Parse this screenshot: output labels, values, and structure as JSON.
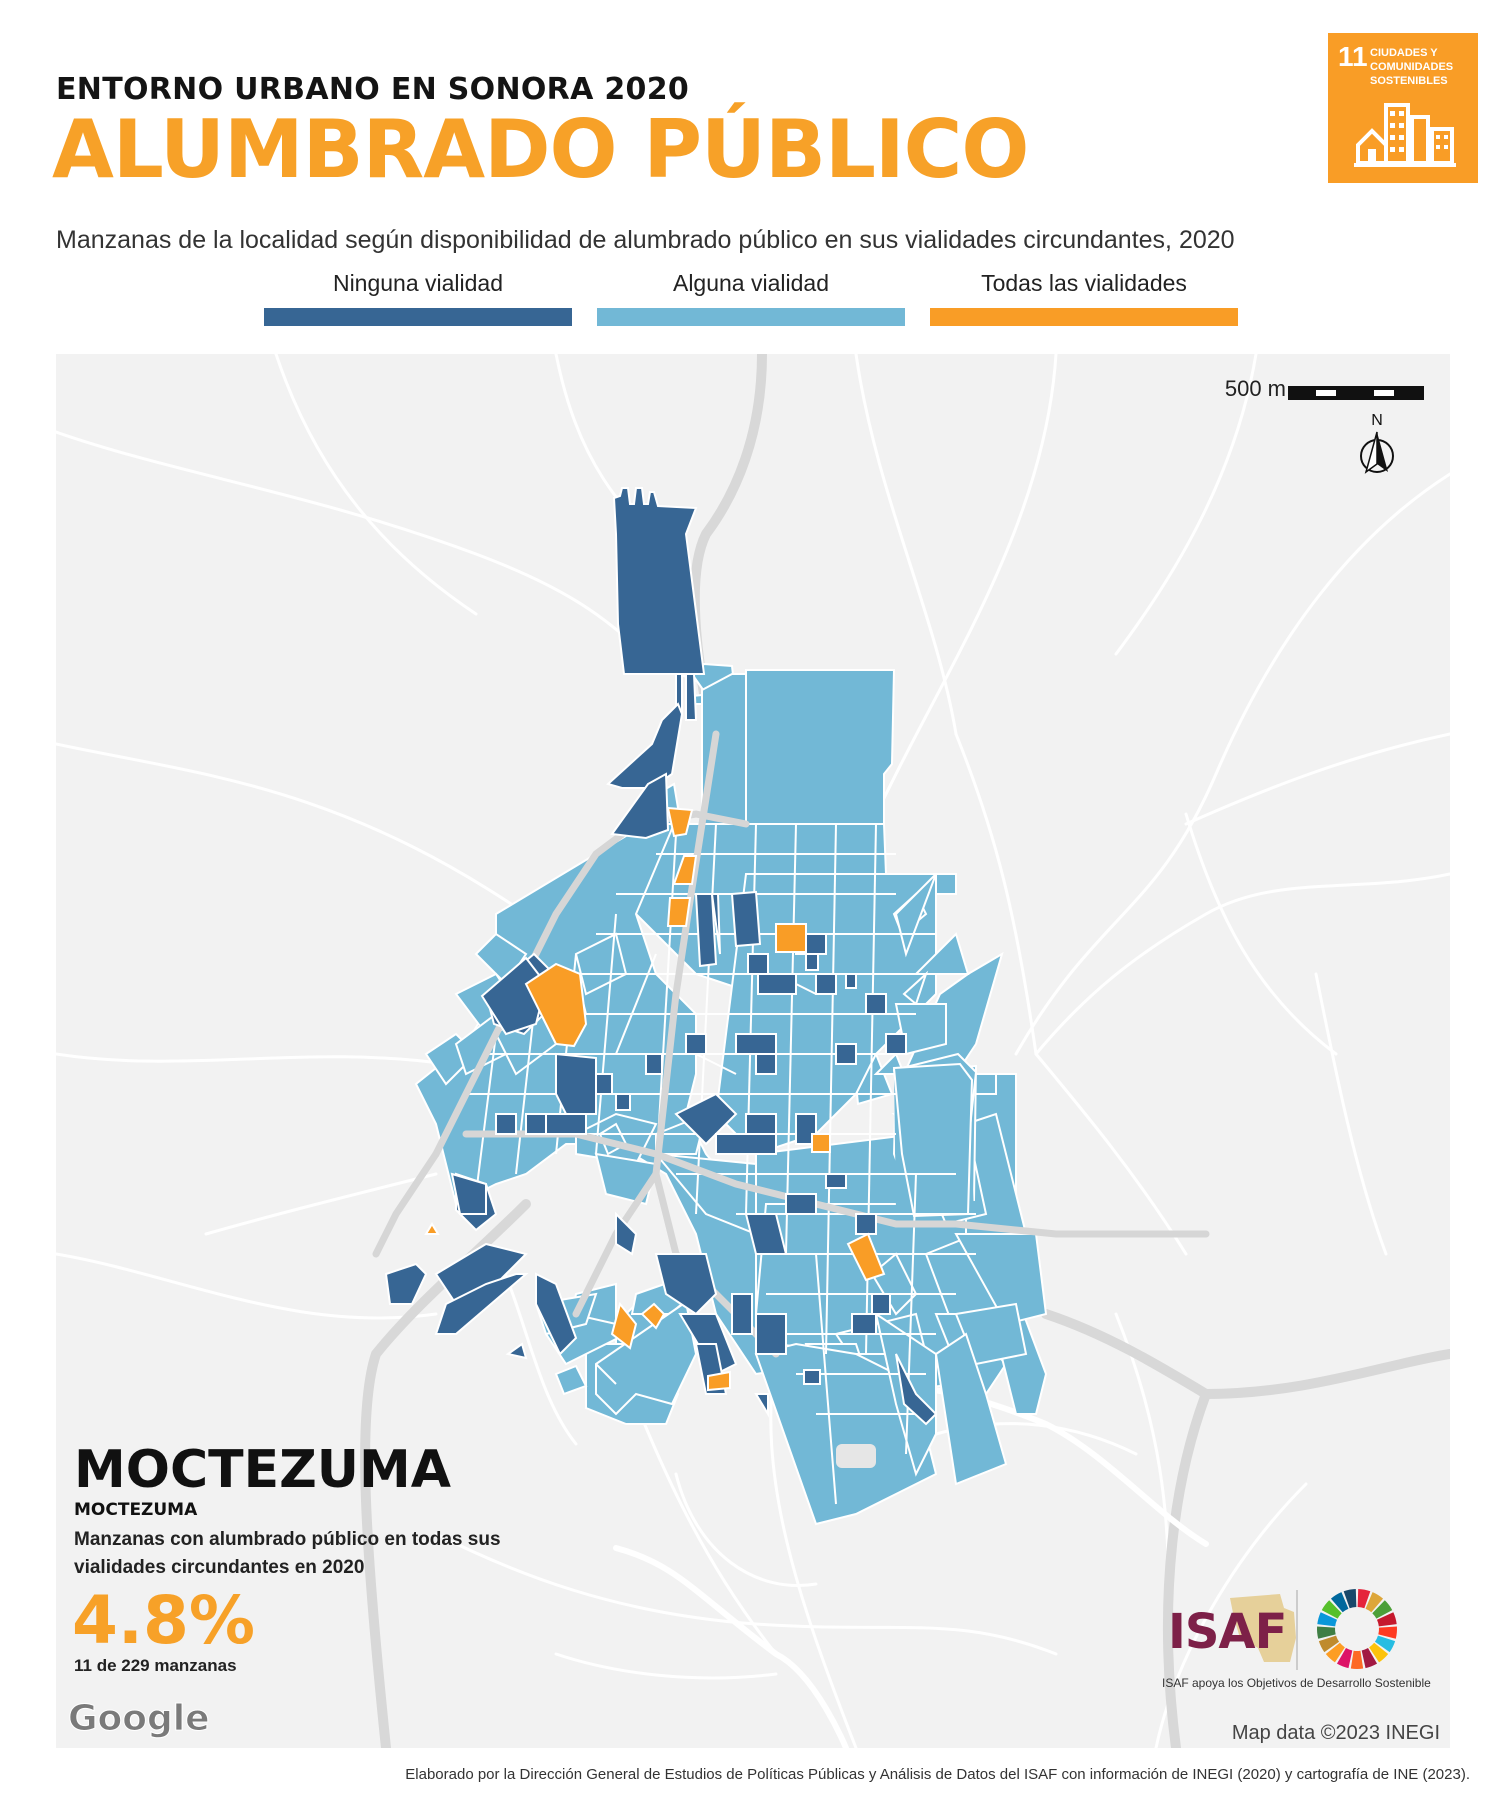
{
  "header": {
    "kicker": "ENTORNO URBANO EN SONORA 2020",
    "title": "ALUMBRADO PÚBLICO",
    "subtitle": "Manzanas de la localidad según disponibilidad de alumbrado público en sus vialidades circundantes, 2020"
  },
  "sdg_badge": {
    "number": "11",
    "text": "CIUDADES Y COMUNIDADES SOSTENIBLES",
    "color": "#f99d26",
    "icon": "city-buildings-icon"
  },
  "legend": [
    {
      "label": "Ninguna vialidad",
      "color": "#376694"
    },
    {
      "label": "Alguna vialidad",
      "color": "#72b8d6"
    },
    {
      "label": "Todas las vialidades",
      "color": "#f99d26"
    }
  ],
  "map": {
    "scale_label": "500 m",
    "north_label": "N",
    "attribution": "Map data ©2023 INEGI",
    "provider": "Google",
    "background": "#f2f2f2"
  },
  "locality": {
    "name": "MOCTEZUMA",
    "municipality": "MOCTEZUMA",
    "stat_description": "Manzanas con alumbrado público en todas sus vialidades circundantes en 2020",
    "stat_value": "4.8%",
    "stat_count": "11 de 229 manzanas"
  },
  "logos": {
    "isaf": "ISAF",
    "isaf_tagline": "ISAF apoya los Objetivos de Desarrollo Sostenible"
  },
  "footer": {
    "credit": "Elaborado por la Dirección General de Estudios de Políticas Públicas y Análisis de Datos del ISAF con información de INEGI (2020) y cartografía de INE (2023)."
  }
}
